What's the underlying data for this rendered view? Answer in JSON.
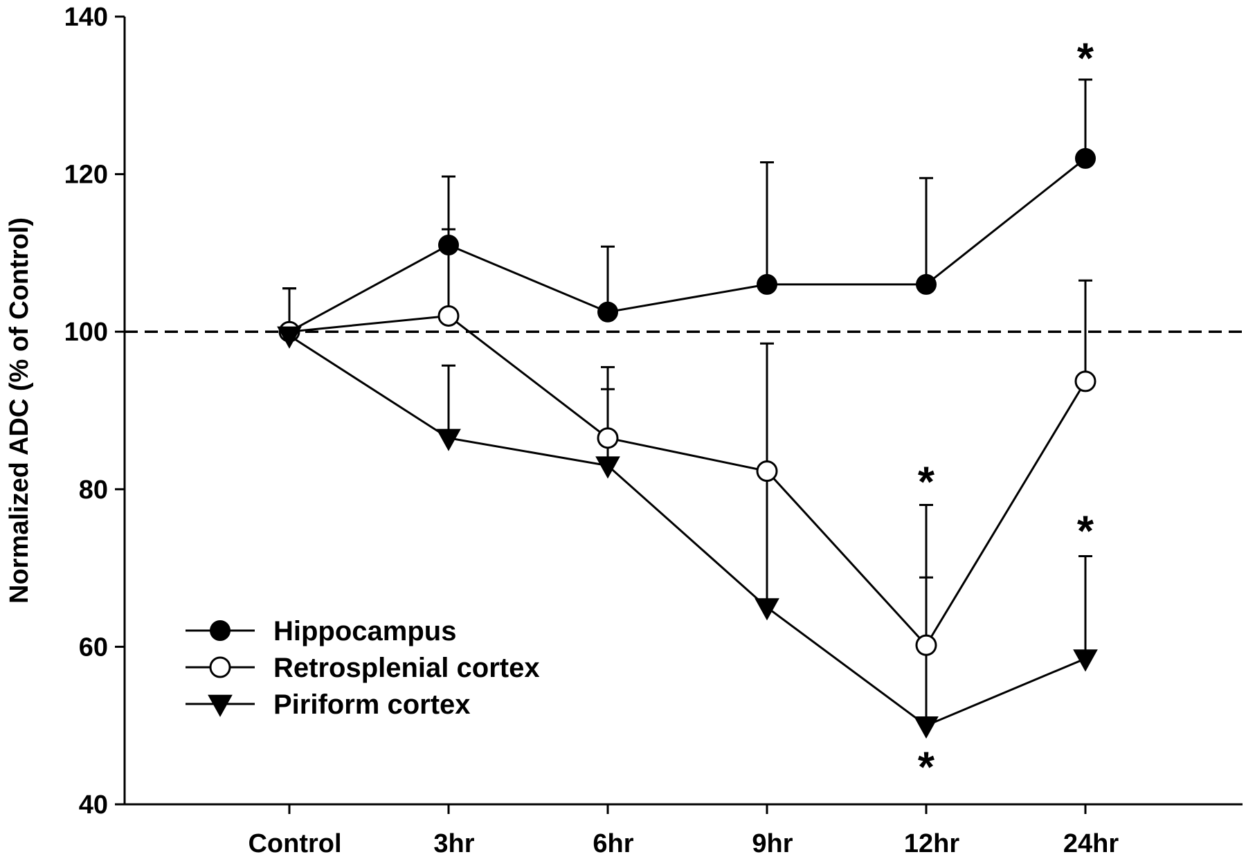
{
  "chart_data": {
    "type": "line",
    "ylabel": "Normalized ADC (% of Control)",
    "xlabel": "",
    "categories": [
      "Control",
      "3hr",
      "6hr",
      "9hr",
      "12hr",
      "24hr"
    ],
    "ylim": [
      40,
      140
    ],
    "yticks": [
      40,
      60,
      80,
      100,
      120,
      140
    ],
    "reference_line": {
      "y": 100,
      "style": "dashed"
    },
    "legend_position": "bottom-left",
    "series": [
      {
        "name": "Hippocampus",
        "marker": "filled-circle",
        "values": [
          100,
          111,
          102.5,
          106,
          106,
          122
        ],
        "error_up": [
          105.5,
          119.7,
          110.8,
          121.5,
          119.5,
          132
        ]
      },
      {
        "name": "Retrosplenial cortex",
        "marker": "open-circle",
        "values": [
          100,
          102,
          86.5,
          82.3,
          60.2,
          93.7
        ],
        "error_up": [
          105.5,
          113,
          95.5,
          98.5,
          78,
          106.5
        ]
      },
      {
        "name": "Piriform cortex",
        "marker": "filled-triangle-down",
        "values": [
          99.5,
          86.5,
          83,
          65,
          50,
          58.5
        ],
        "error_up": [
          105.5,
          95.7,
          92.7,
          81.5,
          68.8,
          71.5
        ]
      }
    ],
    "annotations": [
      {
        "text": "*",
        "category": "24hr",
        "y": 135.3
      },
      {
        "text": "*",
        "category": "12hr",
        "y": 81.5
      },
      {
        "text": "*",
        "category": "24hr",
        "y": 75.3
      },
      {
        "text": "*",
        "category": "12hr",
        "y": 45.3
      }
    ]
  }
}
